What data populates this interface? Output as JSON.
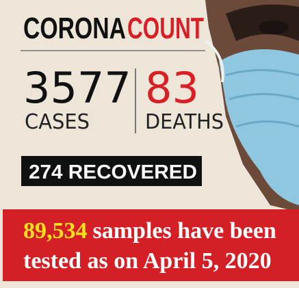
{
  "header": {
    "title_black": "CORONA",
    "title_red": "COUNT"
  },
  "stats": {
    "cases": {
      "value": 3577,
      "label": "CASES"
    },
    "deaths": {
      "value": 83,
      "label": "DEATHS"
    },
    "recovered": {
      "value": 274,
      "label": "RECOVERED"
    }
  },
  "footer": {
    "highlight": "89,534",
    "line1": "samples have been",
    "line2": "tested as on April 5, 2020"
  }
}
